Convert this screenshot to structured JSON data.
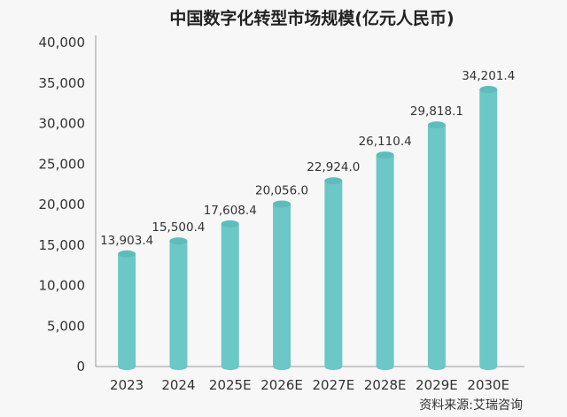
{
  "chart_data": {
    "type": "bar",
    "title": "中国数字化转型市场规模(亿元人民币)",
    "xlabel": "",
    "ylabel": "",
    "categories": [
      "2023",
      "2024",
      "2025E",
      "2026E",
      "2027E",
      "2028E",
      "2029E",
      "2030E"
    ],
    "values": [
      13903.4,
      15500.4,
      17608.4,
      20056.0,
      22924.0,
      26110.4,
      29818.1,
      34201.4
    ],
    "data_labels": [
      "13,903.4",
      "15,500.4",
      "17,608.4",
      "20,056.0",
      "22,924.0",
      "26,110.4",
      "29,818.1",
      "34,201.4"
    ],
    "ylim": [
      0,
      40000
    ],
    "yticks": [
      "0",
      "5,000",
      "10,000",
      "15,000",
      "20,000",
      "25,000",
      "30,000",
      "35,000",
      "40,000"
    ],
    "grid": false,
    "bar_style": "cylinder",
    "bar_color": "#6cc7c7",
    "source": "资料来源:艾瑞咨询"
  }
}
